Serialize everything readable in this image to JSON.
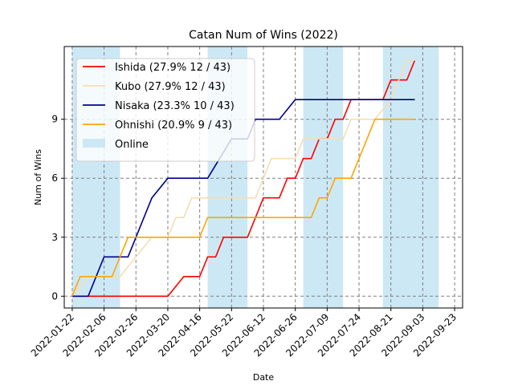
{
  "chart_data": {
    "type": "line",
    "title": "Catan Num of Wins (2022)",
    "xlabel": "Date",
    "ylabel": "Num of Wins",
    "grid": true,
    "legend_position": "top-left",
    "x_ticks": [
      "2022-01-22",
      "2022-02-06",
      "2022-02-26",
      "2022-03-20",
      "2022-04-16",
      "2022-05-22",
      "2022-06-12",
      "2022-06-26",
      "2022-07-09",
      "2022-07-24",
      "2022-08-21",
      "2022-09-03",
      "2022-09-23"
    ],
    "y_ticks": [
      0,
      3,
      6,
      9
    ],
    "ylim": [
      -0.6,
      12.7
    ],
    "online_spans": [
      [
        0,
        3
      ],
      [
        8.5,
        11
      ],
      [
        14.5,
        17
      ],
      [
        19.5,
        23
      ]
    ],
    "online_label": "Online",
    "online_color": "#cde8f5",
    "series": [
      {
        "name": "Ishida (27.9% 12 / 43)",
        "color": "#ff0000",
        "points": [
          [
            0,
            0
          ],
          [
            6,
            0
          ],
          [
            7,
            1
          ],
          [
            8,
            1
          ],
          [
            8.5,
            2
          ],
          [
            9,
            2
          ],
          [
            9.5,
            3
          ],
          [
            11,
            3
          ],
          [
            12,
            5
          ],
          [
            13,
            5
          ],
          [
            13.5,
            6
          ],
          [
            14,
            6
          ],
          [
            14.5,
            7
          ],
          [
            15,
            7
          ],
          [
            15.5,
            8
          ],
          [
            16,
            8
          ],
          [
            16.5,
            9
          ],
          [
            17,
            9
          ],
          [
            17.5,
            10
          ],
          [
            19.5,
            10
          ],
          [
            20,
            11
          ],
          [
            21,
            11
          ],
          [
            21.5,
            12
          ]
        ]
      },
      {
        "name": "Kubo (27.9% 12 / 43)",
        "color": "#f5deb3",
        "points": [
          [
            0,
            0
          ],
          [
            1,
            1
          ],
          [
            3,
            1
          ],
          [
            4,
            2
          ],
          [
            5,
            3
          ],
          [
            6,
            3
          ],
          [
            6.5,
            4
          ],
          [
            7,
            4
          ],
          [
            7.5,
            5
          ],
          [
            11.5,
            5
          ],
          [
            12.5,
            7
          ],
          [
            14,
            7
          ],
          [
            14.5,
            8
          ],
          [
            17,
            8
          ],
          [
            17.5,
            9
          ],
          [
            19,
            9
          ],
          [
            20,
            10
          ],
          [
            20.5,
            11
          ],
          [
            21,
            12
          ],
          [
            21.5,
            12
          ]
        ]
      },
      {
        "name": "Nisaka (23.3% 10 / 43)",
        "color": "#00008b",
        "points": [
          [
            0,
            0
          ],
          [
            1,
            0
          ],
          [
            2,
            2
          ],
          [
            3,
            2
          ],
          [
            3.5,
            2
          ],
          [
            5,
            5
          ],
          [
            6,
            6
          ],
          [
            8.5,
            6
          ],
          [
            10,
            8
          ],
          [
            11,
            8
          ],
          [
            11.5,
            9
          ],
          [
            13,
            9
          ],
          [
            14,
            10
          ],
          [
            21.5,
            10
          ]
        ]
      },
      {
        "name": "Ohnishi (20.9% 9 / 43)",
        "color": "#ffa500",
        "points": [
          [
            0,
            0
          ],
          [
            0.5,
            1
          ],
          [
            2.5,
            1
          ],
          [
            3.5,
            3
          ],
          [
            8,
            3
          ],
          [
            8.5,
            4
          ],
          [
            15,
            4
          ],
          [
            15.5,
            5
          ],
          [
            16,
            5
          ],
          [
            16.5,
            6
          ],
          [
            17.5,
            6
          ],
          [
            19,
            9
          ],
          [
            21.5,
            9
          ]
        ]
      }
    ]
  }
}
